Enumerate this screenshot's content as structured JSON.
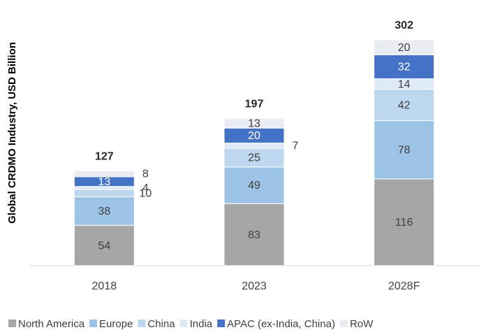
{
  "chart_data": {
    "type": "stacked_bar",
    "y_label": "Global CRDMO Industry, USD Billion",
    "categories": [
      "2018",
      "2023",
      "2028F"
    ],
    "series": [
      {
        "name": "North America",
        "color": "#a6a6a6",
        "values": [
          54,
          83,
          116
        ]
      },
      {
        "name": "Europe",
        "color": "#9dc3e6",
        "values": [
          38,
          49,
          78
        ]
      },
      {
        "name": "China",
        "color": "#bdd7ee",
        "values": [
          10,
          25,
          42
        ]
      },
      {
        "name": "India",
        "color": "#deebf7",
        "values": [
          4,
          7,
          14
        ]
      },
      {
        "name": "APAC (ex-India, China)",
        "color": "#4472c4",
        "values": [
          13,
          20,
          32
        ]
      },
      {
        "name": "RoW",
        "color": "#e9ecf2",
        "values": [
          8,
          13,
          20
        ]
      }
    ],
    "totals": [
      127,
      197,
      302
    ],
    "legend": "bottom"
  }
}
